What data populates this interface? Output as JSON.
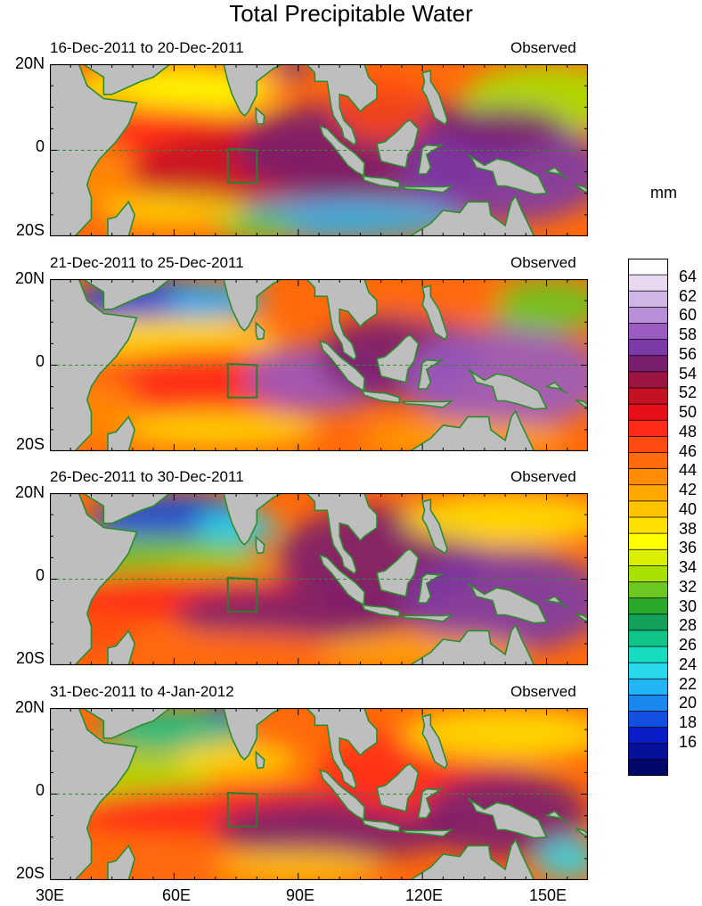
{
  "figure": {
    "title": "Total Precipitable Water",
    "units": "mm"
  },
  "panels": [
    {
      "date_range": "16-Dec-2011 to 20-Dec-2011",
      "status": "Observed"
    },
    {
      "date_range": "21-Dec-2011 to 25-Dec-2011",
      "status": "Observed"
    },
    {
      "date_range": "26-Dec-2011 to 30-Dec-2011",
      "status": "Observed"
    },
    {
      "date_range": "31-Dec-2011 to 4-Jan-2012",
      "status": "Observed"
    }
  ],
  "axes": {
    "lat_labels": [
      "20N",
      "0",
      "20S"
    ],
    "lon_labels": [
      "30E",
      "60E",
      "90E",
      "120E",
      "150E"
    ]
  },
  "colorbar": {
    "labels": [
      "64",
      "62",
      "60",
      "58",
      "56",
      "54",
      "52",
      "50",
      "48",
      "46",
      "44",
      "42",
      "40",
      "38",
      "36",
      "34",
      "32",
      "30",
      "28",
      "26",
      "24",
      "22",
      "20",
      "18",
      "16"
    ],
    "colors": [
      "#fefefe",
      "#e8d9f0",
      "#d0b8e6",
      "#b88fd6",
      "#9a5cc0",
      "#7c3aa6",
      "#7a1f6e",
      "#9c1444",
      "#c41225",
      "#e81018",
      "#ff2a1a",
      "#ff4a10",
      "#ff6a0a",
      "#ff8c05",
      "#ffa800",
      "#ffc400",
      "#ffe000",
      "#ffff00",
      "#d8f000",
      "#a8e000",
      "#6cc820",
      "#2aa82a",
      "#12a05a",
      "#10c48a",
      "#18dcc0",
      "#2ad8ec",
      "#22b4f4",
      "#1a88f0",
      "#1250e0",
      "#0a1ec8",
      "#06109a",
      "#02086a"
    ]
  },
  "map_colors": {
    "land": "#bebebe",
    "coast": "#2e8b2e",
    "box": "#2e7d2e"
  }
}
